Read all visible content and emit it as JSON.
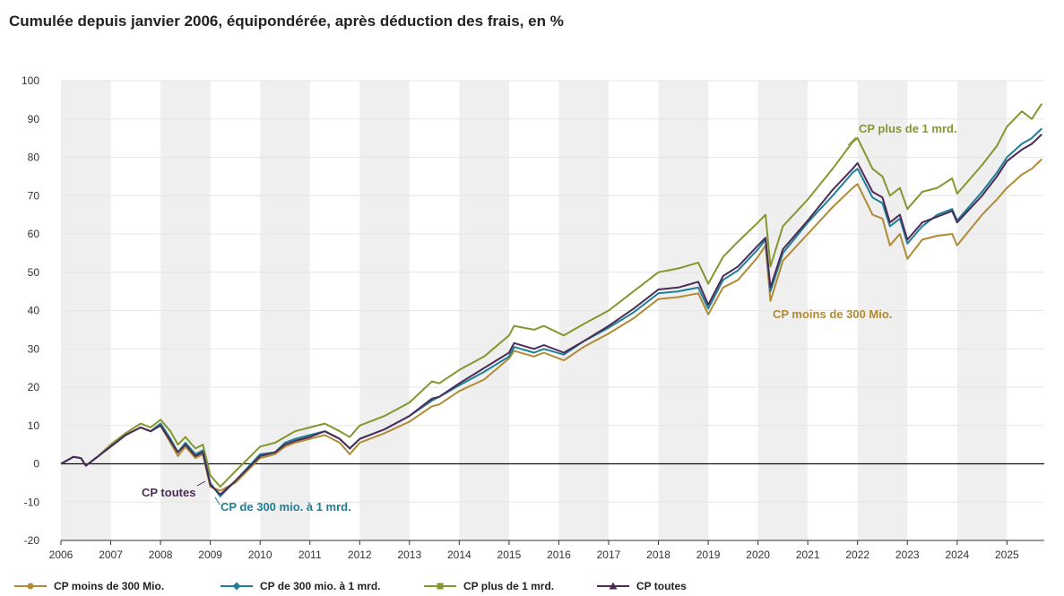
{
  "chart_data": {
    "type": "line",
    "title": "Cumulée depuis janvier 2006, équipondérée, après déduction des frais, en %",
    "xlabel": "",
    "ylabel": "",
    "ylim": [
      -20,
      100
    ],
    "yticks": [
      "100",
      "90",
      "80",
      "70",
      "60",
      "50",
      "40",
      "30",
      "20",
      "10",
      "0",
      "-10",
      "-20"
    ],
    "xlim": [
      2006,
      2025.75
    ],
    "xticks": [
      "2006",
      "2007",
      "2008",
      "2009",
      "2010",
      "2011",
      "2012",
      "2013",
      "2014",
      "2015",
      "2016",
      "2017",
      "2018",
      "2019",
      "2020",
      "2021",
      "2022",
      "2023",
      "2024",
      "2025"
    ],
    "grid": "horizontal gridlines, alternating grey year bands",
    "legend": "bottom",
    "colors": {
      "small": "#b08a34",
      "mid": "#1f7f96",
      "large": "#84962e",
      "all": "#4b2b57",
      "band": "#efefef",
      "grid": "#e6e6e6"
    },
    "anchors_x": [
      2006.0,
      2006.25,
      2006.4,
      2006.5,
      2006.75,
      2007.0,
      2007.3,
      2007.6,
      2007.8,
      2008.0,
      2008.2,
      2008.35,
      2008.5,
      2008.7,
      2008.85,
      2009.0,
      2009.2,
      2009.5,
      2010.0,
      2010.3,
      2010.5,
      2010.7,
      2011.0,
      2011.3,
      2011.6,
      2011.8,
      2012.0,
      2012.5,
      2013.0,
      2013.45,
      2013.6,
      2014.0,
      2014.5,
      2015.0,
      2015.1,
      2015.5,
      2015.7,
      2016.1,
      2016.5,
      2017.0,
      2017.5,
      2018.0,
      2018.4,
      2018.8,
      2019.0,
      2019.3,
      2019.6,
      2020.0,
      2020.15,
      2020.25,
      2020.5,
      2021.0,
      2021.5,
      2021.9,
      2022.0,
      2022.3,
      2022.5,
      2022.65,
      2022.85,
      2023.0,
      2023.3,
      2023.6,
      2023.9,
      2024.0,
      2024.5,
      2024.8,
      2025.0,
      2025.3,
      2025.5,
      2025.7
    ],
    "series": [
      {
        "name": "CP moins de 300 Mio.",
        "values": [
          0,
          1.8,
          1.5,
          -0.5,
          2,
          4.5,
          7.5,
          9.5,
          8.5,
          10,
          5.5,
          2,
          4.5,
          1.5,
          2.5,
          -6,
          -7,
          -5,
          1.5,
          2.5,
          4.5,
          5.5,
          6.5,
          7.5,
          5.5,
          2.5,
          5.5,
          8,
          11,
          15,
          15.5,
          19,
          22,
          27.5,
          29.5,
          28,
          29,
          27,
          30.5,
          34,
          38,
          43,
          43.5,
          44.5,
          39,
          46,
          48,
          54,
          57,
          42.5,
          53,
          60,
          67,
          72,
          73,
          65,
          64,
          57,
          60,
          53.5,
          58.5,
          59.5,
          60,
          57,
          65,
          69,
          72,
          75.5,
          77,
          79.5
        ]
      },
      {
        "name": "CP de 300 mio. à 1 mrd.",
        "values": [
          0,
          1.8,
          1.5,
          -0.5,
          2,
          4.5,
          7.5,
          9.5,
          8.5,
          10.5,
          6.5,
          3,
          5.5,
          2.5,
          3.5,
          -5,
          -8.5,
          -4.5,
          2.5,
          3,
          5.5,
          6.5,
          7.5,
          8.5,
          6.5,
          4,
          6.5,
          9,
          12.5,
          16.5,
          17.5,
          20.5,
          24,
          28,
          30.5,
          29,
          30,
          28.5,
          32,
          35.5,
          39.5,
          44.5,
          45,
          46,
          40.5,
          48,
          50.5,
          56,
          58.5,
          45,
          55,
          63,
          70,
          76,
          77,
          69.5,
          68,
          62,
          64,
          57.5,
          62,
          65,
          66.5,
          63.5,
          71,
          76,
          80,
          83.5,
          85,
          87.5
        ]
      },
      {
        "name": "CP plus de 1 mrd.",
        "values": [
          0,
          1.8,
          1.5,
          -0.5,
          2,
          5,
          8,
          10.5,
          9.5,
          11.5,
          8.5,
          5,
          7,
          4,
          5,
          -3,
          -6,
          -2,
          4.5,
          5.5,
          7,
          8.5,
          9.5,
          10.5,
          8.5,
          7,
          10,
          12.5,
          16,
          21.5,
          21,
          24.5,
          28,
          33.5,
          36,
          35,
          36,
          33.5,
          36.5,
          40,
          45,
          50,
          51,
          52.5,
          47,
          54,
          58,
          63,
          65,
          51.5,
          62,
          69,
          77,
          84,
          85,
          77,
          75,
          70,
          72,
          66.5,
          71,
          72,
          74.5,
          70.5,
          78,
          83,
          88,
          92,
          90,
          94
        ]
      },
      {
        "name": "CP toutes",
        "values": [
          0,
          1.8,
          1.5,
          -0.5,
          2,
          4.5,
          7.5,
          9.5,
          8.5,
          10,
          6,
          3,
          5,
          2,
          3,
          -5.5,
          -8,
          -4.5,
          2,
          3,
          5,
          6,
          7,
          8.5,
          6.5,
          4,
          6.5,
          9,
          12.5,
          17,
          17.5,
          21,
          25,
          29,
          31.5,
          30,
          31,
          29,
          32,
          36,
          40.5,
          45.5,
          46,
          47.5,
          41.5,
          49,
          51.5,
          57,
          59,
          46,
          56,
          63.5,
          71.5,
          77,
          78.5,
          71,
          69.5,
          63,
          65,
          58.5,
          63,
          64.5,
          66,
          63,
          70,
          75,
          79,
          82,
          83.5,
          86
        ]
      }
    ],
    "annotations": [
      {
        "text": "CP plus de 1 mrd.",
        "series": "CP plus de 1 mrd."
      },
      {
        "text": "CP moins de 300 Mio.",
        "series": "CP moins de 300 Mio."
      },
      {
        "text": "CP toutes",
        "series": "CP toutes"
      },
      {
        "text": "CP de 300 mio. à 1 mrd.",
        "series": "CP de 300 mio. à 1 mrd."
      }
    ]
  }
}
